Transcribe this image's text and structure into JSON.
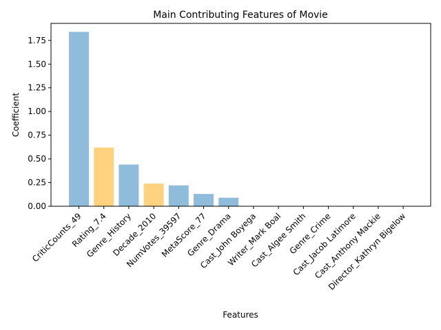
{
  "chart_data": {
    "type": "bar",
    "title": "Main Contributing Features of Movie",
    "xlabel": "Features",
    "ylabel": "Coefficient",
    "ylim": [
      0,
      1.93
    ],
    "yticks": [
      "0.00",
      "0.25",
      "0.50",
      "0.75",
      "1.00",
      "1.25",
      "1.50",
      "1.75"
    ],
    "grid": false,
    "categories": [
      "CriticCounts_49",
      "Rating_7.4",
      "Genre_History",
      "Decade_2010",
      "NumVotes_39597",
      "MetaScore_77",
      "Genre_Drama",
      "Cast_John Boyega",
      "Writer_Mark Boal",
      "Cast_Algee Smith",
      "Genre_Crime",
      "Cast_Jacob Latimore",
      "Cast_Anthony Mackie",
      "Director_Kathryn Bigelow"
    ],
    "values": [
      1.84,
      0.62,
      0.44,
      0.24,
      0.22,
      0.13,
      0.09,
      0,
      0,
      0,
      0,
      0,
      0,
      0
    ],
    "bar_colors": [
      "#8fbcdb",
      "#ffd27f",
      "#8fbcdb",
      "#ffd27f",
      "#8fbcdb",
      "#8fbcdb",
      "#8fbcdb",
      "#8fbcdb",
      "#8fbcdb",
      "#8fbcdb",
      "#8fbcdb",
      "#8fbcdb",
      "#8fbcdb",
      "#8fbcdb"
    ]
  }
}
